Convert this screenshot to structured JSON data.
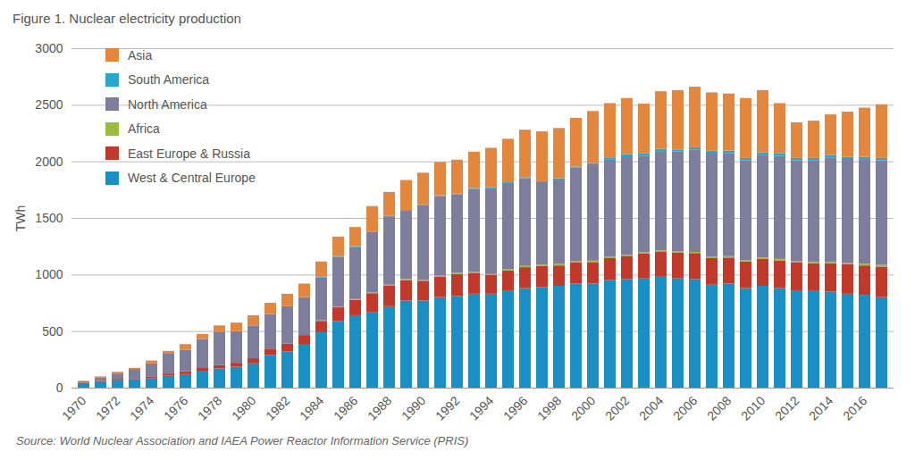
{
  "chart_data": {
    "type": "bar",
    "title": "Figure 1. Nuclear electricity production",
    "source": "Source: World Nuclear Association and IAEA Power Reactor Information Service (PRIS)",
    "ylabel": "TWh",
    "stacked": true,
    "grid": true,
    "legend": "top-left",
    "ylim": [
      0,
      3000
    ],
    "yticks": [
      0,
      500,
      1000,
      1500,
      2000,
      2500,
      3000
    ],
    "categories": [
      "1970",
      null,
      "1972",
      null,
      "1974",
      null,
      "1976",
      null,
      "1978",
      null,
      "1980",
      null,
      "1982",
      null,
      "1984",
      null,
      "1986",
      null,
      "1988",
      null,
      "1990",
      null,
      "1992",
      null,
      "1994",
      null,
      "1996",
      null,
      "1998",
      null,
      "2000",
      null,
      "2002",
      null,
      "2004",
      null,
      "2006",
      null,
      "2008",
      null,
      "2010",
      null,
      "2012",
      null,
      "2014",
      null,
      "2016",
      null
    ],
    "series": [
      {
        "name": "West & Central Europe",
        "color": "#1a8fc4",
        "values": [
          40,
          55,
          70,
          75,
          85,
          105,
          120,
          150,
          170,
          185,
          215,
          290,
          320,
          380,
          490,
          590,
          640,
          670,
          720,
          770,
          770,
          800,
          810,
          830,
          830,
          860,
          880,
          890,
          900,
          920,
          920,
          950,
          960,
          970,
          980,
          970,
          960,
          910,
          920,
          880,
          900,
          880,
          860,
          860,
          850,
          830,
          820,
          800
        ]
      },
      {
        "name": "East Europe & Russia",
        "color": "#c0392b",
        "values": [
          3,
          5,
          8,
          10,
          15,
          20,
          25,
          30,
          30,
          35,
          45,
          55,
          70,
          85,
          100,
          120,
          135,
          165,
          180,
          180,
          175,
          180,
          195,
          185,
          165,
          175,
          185,
          185,
          180,
          185,
          190,
          195,
          205,
          215,
          220,
          225,
          230,
          235,
          230,
          235,
          240,
          245,
          245,
          240,
          250,
          260,
          260,
          270
        ]
      },
      {
        "name": "Africa",
        "color": "#9bbb3a",
        "values": [
          0,
          0,
          0,
          0,
          0,
          0,
          0,
          0,
          0,
          0,
          0,
          0,
          0,
          0,
          5,
          5,
          8,
          8,
          10,
          11,
          8,
          9,
          9,
          7,
          9,
          11,
          11,
          12,
          13,
          13,
          13,
          11,
          12,
          12,
          14,
          12,
          10,
          12,
          13,
          13,
          12,
          13,
          12,
          14,
          14,
          11,
          15,
          15
        ]
      },
      {
        "name": "North America",
        "color": "#7d7d9c",
        "values": [
          12,
          30,
          47,
          80,
          115,
          175,
          190,
          250,
          290,
          280,
          290,
          305,
          330,
          332,
          380,
          442,
          459,
          532,
          605,
          602,
          660,
          704,
          694,
          735,
          758,
          762,
          775,
          728,
          746,
          827,
          850,
          858,
          868,
          853,
          877,
          882,
          905,
          919,
          911,
          882,
          907,
          910,
          891,
          897,
          921,
          920,
          925,
          925
        ]
      },
      {
        "name": "South America",
        "color": "#2ba6cb",
        "values": [
          0,
          0,
          0,
          0,
          0,
          0,
          0,
          0,
          0,
          0,
          0,
          0,
          0,
          3,
          5,
          8,
          8,
          5,
          5,
          7,
          7,
          7,
          7,
          8,
          8,
          7,
          9,
          10,
          11,
          10,
          12,
          21,
          20,
          20,
          19,
          16,
          20,
          19,
          21,
          20,
          21,
          22,
          22,
          19,
          20,
          19,
          20,
          20
        ]
      },
      {
        "name": "Asia",
        "color": "#e3873f",
        "values": [
          5,
          10,
          15,
          10,
          25,
          25,
          50,
          45,
          60,
          75,
          90,
          100,
          110,
          120,
          135,
          170,
          170,
          225,
          210,
          265,
          280,
          295,
          300,
          320,
          350,
          385,
          420,
          440,
          445,
          430,
          460,
          480,
          495,
          440,
          510,
          525,
          535,
          515,
          505,
          530,
          550,
          445,
          315,
          330,
          360,
          400,
          435,
          475
        ]
      }
    ]
  }
}
